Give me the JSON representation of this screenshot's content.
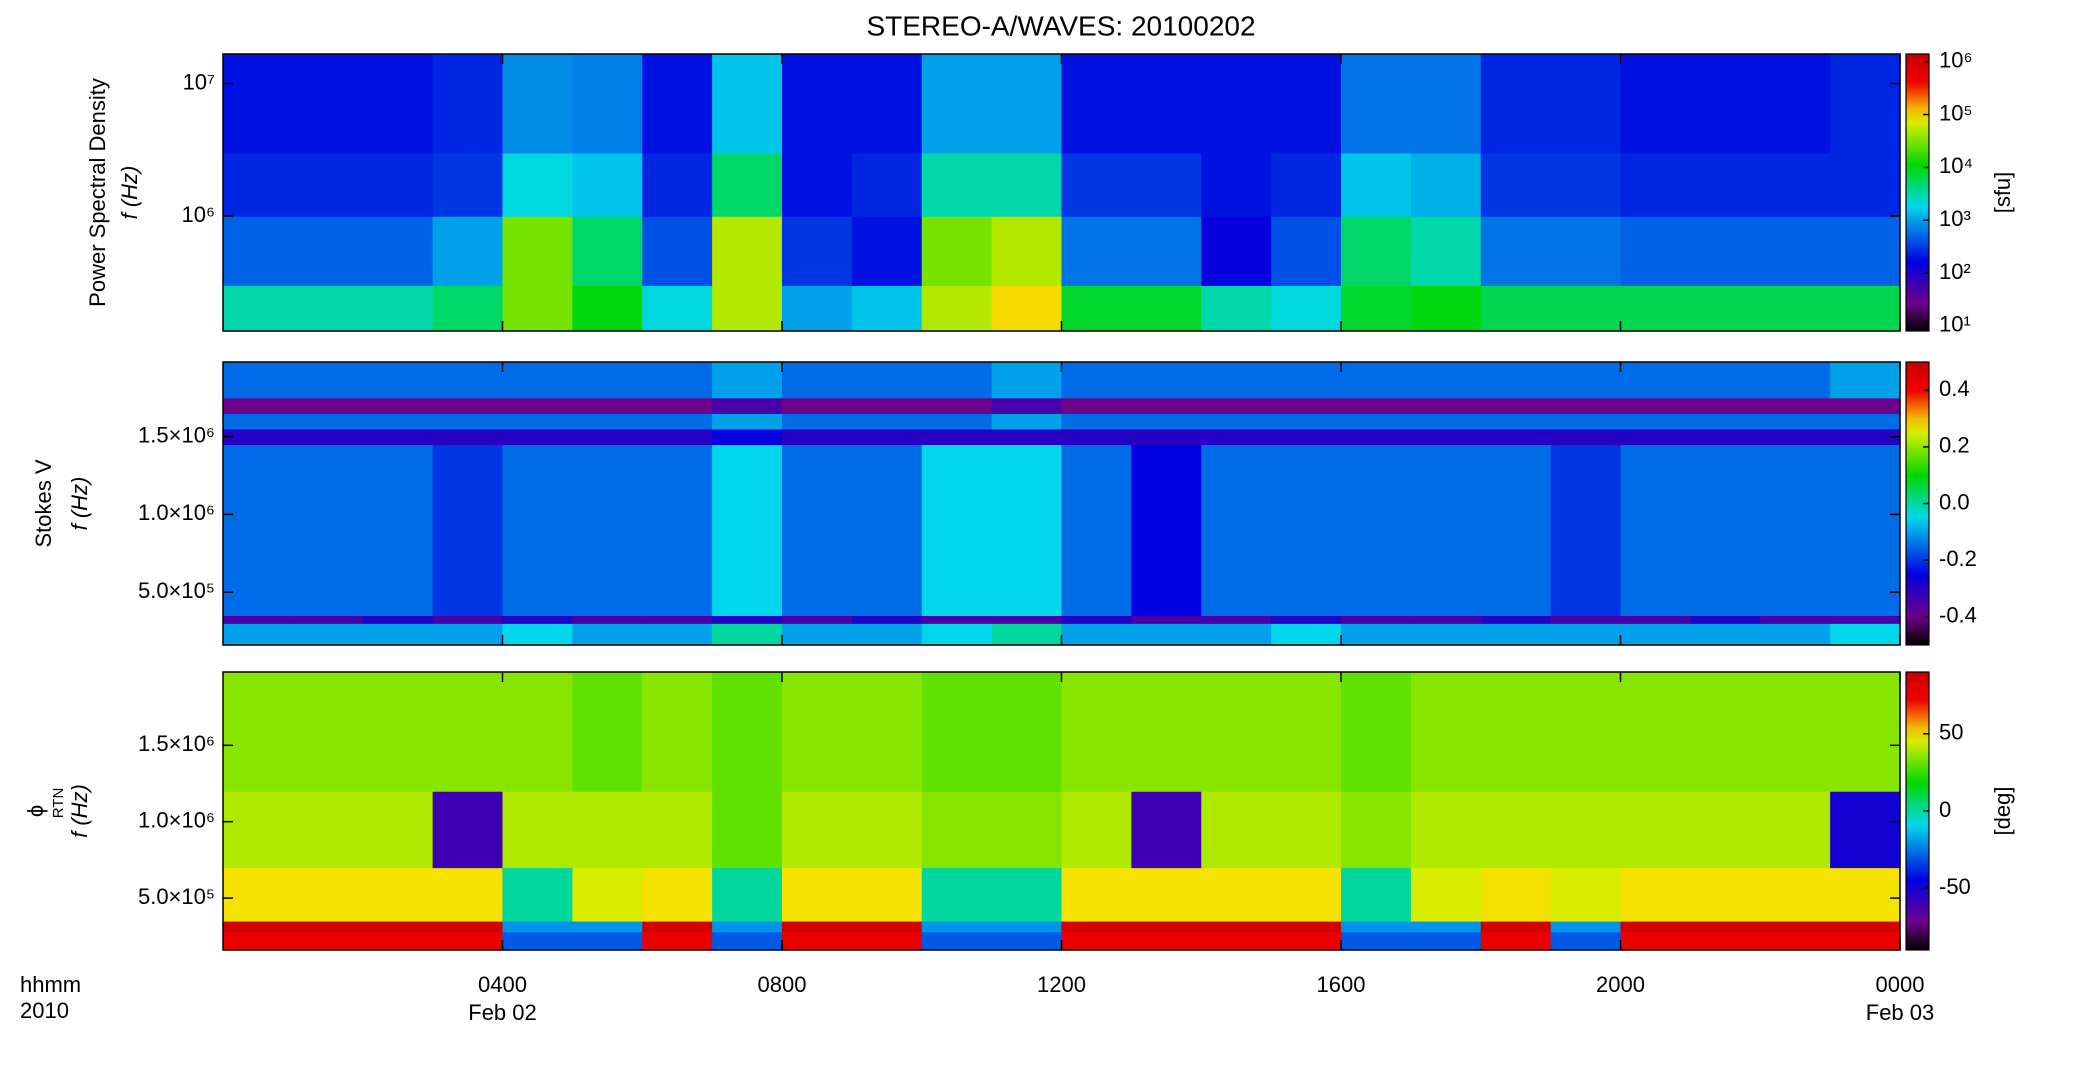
{
  "chart_data": [
    {
      "type": "heatmap",
      "title": "STEREO-A/WAVES: 20100202",
      "ylabel": [
        "Power Spectral Density",
        "f (Hz)"
      ],
      "ylog": true,
      "ylim": [
        136000,
        16700000
      ],
      "yticks": [
        {
          "value": 1000000,
          "label": "10⁶"
        },
        {
          "value": 10000000,
          "label": "10⁷"
        }
      ],
      "xlim": [
        0,
        24
      ],
      "x_bins": [
        0,
        1,
        2,
        3,
        4,
        5,
        6,
        7,
        8,
        9,
        10,
        11,
        12,
        13,
        14,
        15,
        16,
        17,
        18,
        19,
        20,
        21,
        22,
        23,
        24
      ],
      "y_bins": [
        136000,
        300000,
        1000000,
        3000000,
        16700000
      ],
      "values": [
        [
          3000,
          3000,
          3000,
          5000,
          30000,
          10000,
          2000,
          50000,
          1000,
          1500,
          50000,
          100000,
          8000,
          8000,
          3000,
          2000,
          8000,
          10000,
          6000,
          6000,
          6000,
          6000,
          6000,
          6000
        ],
        [
          500,
          500,
          500,
          1000,
          30000,
          5000,
          400,
          50000,
          300,
          200,
          30000,
          50000,
          600,
          600,
          150,
          400,
          5000,
          3000,
          600,
          600,
          500,
          500,
          500,
          500
        ],
        [
          250,
          250,
          250,
          300,
          2000,
          1500,
          250,
          5000,
          200,
          250,
          3000,
          3000,
          300,
          300,
          200,
          250,
          1500,
          1200,
          300,
          300,
          250,
          250,
          250,
          250
        ],
        [
          200,
          200,
          200,
          250,
          800,
          700,
          200,
          1500,
          200,
          200,
          1000,
          1000,
          200,
          200,
          200,
          200,
          600,
          600,
          250,
          250,
          200,
          200,
          200,
          250
        ]
      ],
      "colormap": "rainbow",
      "colorbar": {
        "log": true,
        "lim": [
          8,
          1400000
        ],
        "label": "[sfu]",
        "ticks": [
          {
            "value": 10,
            "label": "10¹"
          },
          {
            "value": 100,
            "label": "10²"
          },
          {
            "value": 1000,
            "label": "10³"
          },
          {
            "value": 10000,
            "label": "10⁴"
          },
          {
            "value": 100000,
            "label": "10⁵"
          },
          {
            "value": 1000000,
            "label": "10⁶"
          }
        ]
      }
    },
    {
      "type": "heatmap",
      "ylabel": [
        "Stokes V",
        "f (Hz)"
      ],
      "ylog": false,
      "ylim": [
        160000,
        1980000
      ],
      "yticks": [
        {
          "value": 500000,
          "label": "5.0×10⁵"
        },
        {
          "value": 1000000,
          "label": "1.0×10⁶"
        },
        {
          "value": 1500000,
          "label": "1.5×10⁶"
        }
      ],
      "xlim": [
        0,
        24
      ],
      "x_bins": [
        0,
        1,
        2,
        3,
        4,
        5,
        6,
        7,
        8,
        9,
        10,
        11,
        12,
        13,
        14,
        15,
        16,
        17,
        18,
        19,
        20,
        21,
        22,
        23,
        24
      ],
      "y_bins": [
        160000,
        300000,
        350000,
        1450000,
        1550000,
        1650000,
        1750000,
        1980000
      ],
      "values": [
        [
          -0.1,
          -0.1,
          -0.1,
          -0.1,
          -0.05,
          -0.1,
          -0.1,
          0,
          -0.1,
          -0.1,
          -0.05,
          0,
          -0.1,
          -0.1,
          -0.1,
          -0.05,
          -0.1,
          -0.1,
          -0.1,
          -0.1,
          -0.1,
          -0.1,
          -0.1,
          -0.05
        ],
        [
          -0.35,
          -0.35,
          -0.3,
          -0.35,
          -0.3,
          -0.35,
          -0.35,
          -0.3,
          -0.35,
          -0.3,
          -0.35,
          -0.35,
          -0.3,
          -0.35,
          -0.35,
          -0.3,
          -0.35,
          -0.35,
          -0.3,
          -0.35,
          -0.35,
          -0.3,
          -0.35,
          -0.35
        ],
        [
          -0.15,
          -0.15,
          -0.15,
          -0.2,
          -0.15,
          -0.15,
          -0.15,
          -0.05,
          -0.15,
          -0.15,
          -0.05,
          -0.05,
          -0.15,
          -0.25,
          -0.15,
          -0.15,
          -0.15,
          -0.15,
          -0.15,
          -0.2,
          -0.15,
          -0.15,
          -0.15,
          -0.15
        ],
        [
          -0.3,
          -0.3,
          -0.3,
          -0.3,
          -0.3,
          -0.3,
          -0.3,
          -0.25,
          -0.3,
          -0.3,
          -0.3,
          -0.3,
          -0.3,
          -0.3,
          -0.3,
          -0.3,
          -0.3,
          -0.3,
          -0.3,
          -0.3,
          -0.3,
          -0.3,
          -0.3,
          -0.3
        ],
        [
          -0.15,
          -0.15,
          -0.15,
          -0.15,
          -0.15,
          -0.15,
          -0.15,
          -0.1,
          -0.15,
          -0.15,
          -0.15,
          -0.1,
          -0.15,
          -0.15,
          -0.15,
          -0.15,
          -0.15,
          -0.15,
          -0.15,
          -0.15,
          -0.15,
          -0.15,
          -0.15,
          -0.15
        ],
        [
          -0.4,
          -0.4,
          -0.4,
          -0.4,
          -0.4,
          -0.4,
          -0.4,
          -0.35,
          -0.4,
          -0.4,
          -0.4,
          -0.35,
          -0.4,
          -0.4,
          -0.4,
          -0.4,
          -0.4,
          -0.4,
          -0.4,
          -0.4,
          -0.4,
          -0.4,
          -0.4,
          -0.4
        ],
        [
          -0.15,
          -0.15,
          -0.15,
          -0.15,
          -0.15,
          -0.15,
          -0.15,
          -0.1,
          -0.15,
          -0.15,
          -0.15,
          -0.1,
          -0.15,
          -0.15,
          -0.15,
          -0.15,
          -0.15,
          -0.15,
          -0.15,
          -0.15,
          -0.15,
          -0.15,
          -0.15,
          -0.1
        ]
      ],
      "colormap": "rainbow",
      "colorbar": {
        "log": false,
        "lim": [
          -0.5,
          0.5
        ],
        "ticks": [
          0.4,
          0.2,
          {
            "value": 0,
            "label": "0.0"
          },
          -0.2,
          -0.4
        ]
      }
    },
    {
      "type": "heatmap",
      "ylabel": [
        "ϕ",
        "f (Hz)"
      ],
      "ylabel_subscript": "RTN",
      "ylog": false,
      "ylim": [
        160000,
        1980000
      ],
      "yticks": [
        {
          "value": 500000,
          "label": "5.0×10⁵"
        },
        {
          "value": 1000000,
          "label": "1.0×10⁶"
        },
        {
          "value": 1500000,
          "label": "1.5×10⁶"
        }
      ],
      "xlim": [
        0,
        24
      ],
      "xticks": [
        {
          "value": 4,
          "label": "0400"
        },
        {
          "value": 8,
          "label": "0800"
        },
        {
          "value": 12,
          "label": "1200"
        },
        {
          "value": 16,
          "label": "1600"
        },
        {
          "value": 20,
          "label": "2000"
        },
        {
          "value": 24,
          "label": "0000"
        }
      ],
      "date_labels": [
        {
          "value": 4,
          "label": "Feb 02"
        },
        {
          "value": 24,
          "label": "Feb 03"
        }
      ],
      "xlabel": [
        "hhmm",
        "2010"
      ],
      "x_bins": [
        0,
        1,
        2,
        3,
        4,
        5,
        6,
        7,
        8,
        9,
        10,
        11,
        12,
        13,
        14,
        15,
        16,
        17,
        18,
        19,
        20,
        21,
        22,
        23,
        24
      ],
      "y_bins": [
        160000,
        280000,
        350000,
        700000,
        1200000,
        1980000
      ],
      "values": [
        [
          75,
          75,
          75,
          75,
          -30,
          -30,
          75,
          -30,
          75,
          75,
          -30,
          -30,
          75,
          75,
          75,
          75,
          -30,
          -30,
          75,
          -30,
          75,
          75,
          75,
          75
        ],
        [
          85,
          85,
          85,
          85,
          -20,
          -20,
          85,
          -20,
          85,
          85,
          -20,
          -20,
          85,
          85,
          85,
          85,
          -20,
          -20,
          85,
          -20,
          85,
          85,
          85,
          85
        ],
        [
          50,
          50,
          50,
          50,
          0,
          45,
          50,
          0,
          50,
          50,
          0,
          0,
          50,
          50,
          50,
          50,
          0,
          45,
          50,
          45,
          50,
          50,
          50,
          50
        ],
        [
          40,
          40,
          40,
          -60,
          40,
          40,
          40,
          30,
          40,
          40,
          35,
          35,
          40,
          -60,
          40,
          40,
          35,
          40,
          40,
          40,
          40,
          40,
          40,
          -50
        ],
        [
          35,
          35,
          35,
          35,
          35,
          30,
          35,
          30,
          35,
          35,
          30,
          30,
          35,
          35,
          35,
          35,
          30,
          35,
          35,
          35,
          35,
          35,
          35,
          35
        ]
      ],
      "colormap": "rainbow",
      "colorbar": {
        "log": false,
        "lim": [
          -90,
          90
        ],
        "label": "[deg]",
        "ticks": [
          50,
          0,
          -50
        ]
      }
    }
  ]
}
